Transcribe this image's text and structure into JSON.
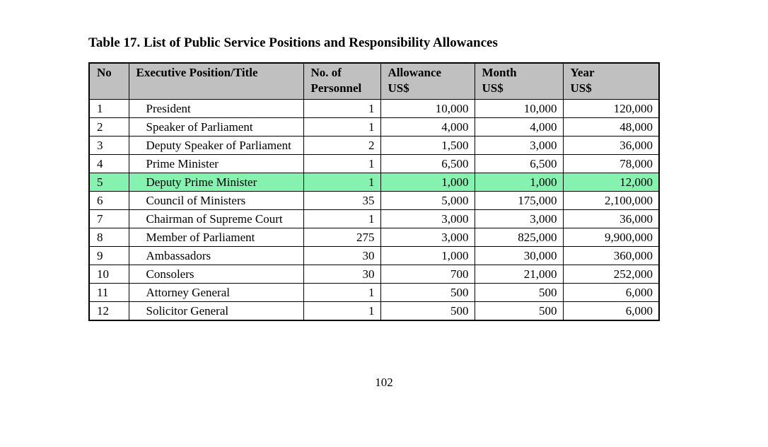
{
  "document": {
    "title": "Table 17. List of Public Service Positions and Responsibility Allowances",
    "page_number": "102"
  },
  "colors": {
    "page_bg": "#FFFFFF",
    "header_bg": "#C0C0C0",
    "highlight": "#85F2B0",
    "border": "#000000"
  },
  "table": {
    "columns": [
      {
        "line1": "No",
        "line2": ""
      },
      {
        "line1": "Executive Position/Title",
        "line2": ""
      },
      {
        "line1": "No. of",
        "line2": "Personnel"
      },
      {
        "line1": "Allowance",
        "line2": "US$"
      },
      {
        "line1": "Month",
        "line2": "US$"
      },
      {
        "line1": "Year",
        "line2": "US$"
      }
    ],
    "rows": [
      {
        "no": "1",
        "position": "President",
        "personnel": "1",
        "allowance": "10,000",
        "month": "10,000",
        "year": "120,000",
        "highlighted": false
      },
      {
        "no": "2",
        "position": "Speaker of Parliament",
        "personnel": "1",
        "allowance": "4,000",
        "month": "4,000",
        "year": "48,000",
        "highlighted": false
      },
      {
        "no": "3",
        "position": "Deputy Speaker of Parliament",
        "personnel": "2",
        "allowance": "1,500",
        "month": "3,000",
        "year": "36,000",
        "highlighted": false
      },
      {
        "no": "4",
        "position": "Prime Minister",
        "personnel": "1",
        "allowance": "6,500",
        "month": "6,500",
        "year": "78,000",
        "highlighted": false
      },
      {
        "no": "5",
        "position": "Deputy Prime Minister",
        "personnel": "1",
        "allowance": "1,000",
        "month": "1,000",
        "year": "12,000",
        "highlighted": true
      },
      {
        "no": "6",
        "position": "Council of Ministers",
        "personnel": "35",
        "allowance": "5,000",
        "month": "175,000",
        "year": "2,100,000",
        "highlighted": false
      },
      {
        "no": "7",
        "position": "Chairman of Supreme Court",
        "personnel": "1",
        "allowance": "3,000",
        "month": "3,000",
        "year": "36,000",
        "highlighted": false
      },
      {
        "no": "8",
        "position": "Member of Parliament",
        "personnel": "275",
        "allowance": "3,000",
        "month": "825,000",
        "year": "9,900,000",
        "highlighted": false
      },
      {
        "no": "9",
        "position": "Ambassadors",
        "personnel": "30",
        "allowance": "1,000",
        "month": "30,000",
        "year": "360,000",
        "highlighted": false
      },
      {
        "no": "10",
        "position": "Consolers",
        "personnel": "30",
        "allowance": "700",
        "month": "21,000",
        "year": "252,000",
        "highlighted": false
      },
      {
        "no": "11",
        "position": "Attorney General",
        "personnel": "1",
        "allowance": "500",
        "month": "500",
        "year": "6,000",
        "highlighted": false
      },
      {
        "no": "12",
        "position": "Solicitor General",
        "personnel": "1",
        "allowance": "500",
        "month": "500",
        "year": "6,000",
        "highlighted": false
      }
    ]
  }
}
